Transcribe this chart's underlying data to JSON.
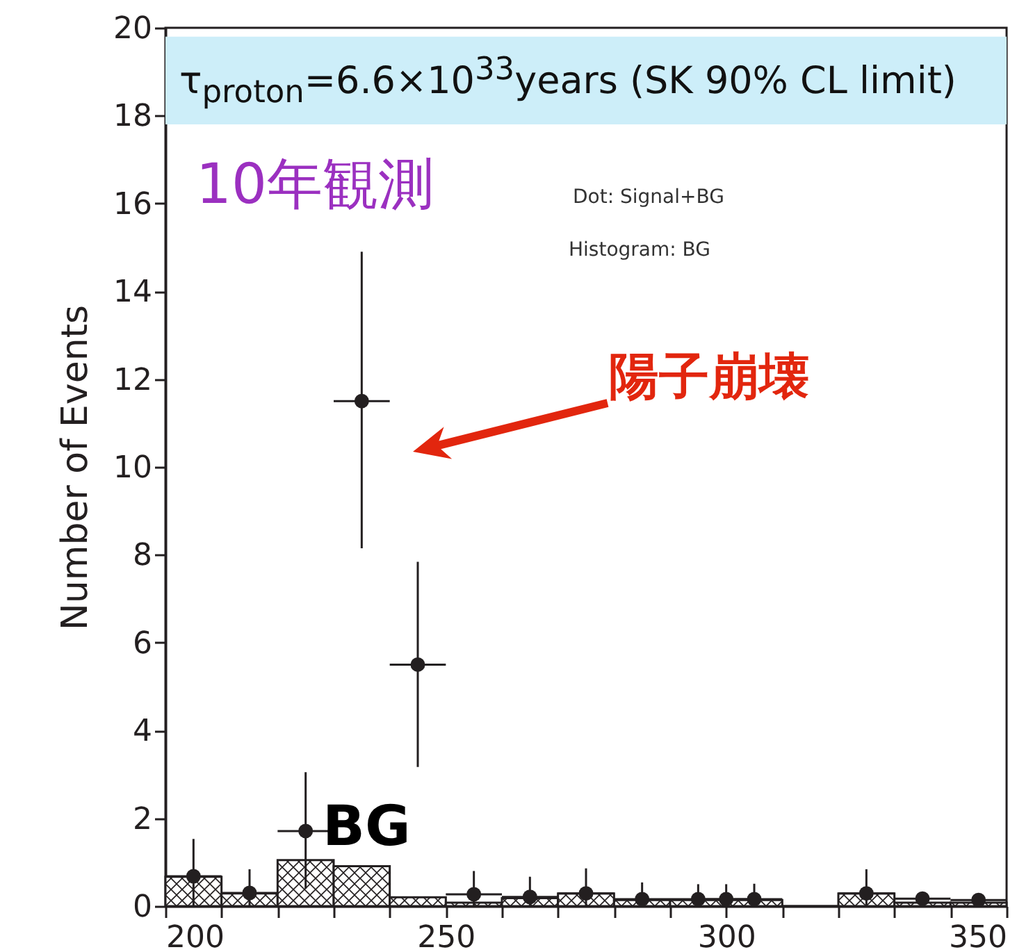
{
  "chart_data": {
    "type": "histogram",
    "ylabel": "Number of Events",
    "xlim": [
      200,
      350
    ],
    "xticks": [
      200,
      {
        "value": 210,
        "label": null
      },
      {
        "value": 220,
        "label": null
      },
      {
        "value": 230,
        "label": null
      },
      {
        "value": 240,
        "label": null
      },
      250,
      {
        "value": 260,
        "label": null
      },
      {
        "value": 270,
        "label": null
      },
      {
        "value": 280,
        "label": null
      },
      {
        "value": 290,
        "label": null
      },
      300,
      {
        "value": 310,
        "label": null
      },
      {
        "value": 320,
        "label": null
      },
      {
        "value": 330,
        "label": null
      },
      {
        "value": 340,
        "label": null
      },
      350
    ],
    "ylim": [
      0,
      20
    ],
    "yticks": [
      0,
      2,
      4,
      6,
      8,
      10,
      12,
      14,
      16,
      18,
      20
    ],
    "grid": false,
    "series": [
      {
        "color": "#231f20",
        "bins": [
          200,
          210,
          220,
          230,
          240,
          250,
          260,
          270,
          280,
          290,
          300,
          310,
          320,
          330,
          340,
          350
        ],
        "values": [
          0.67,
          0.29,
          1.05,
          0.91,
          0.2,
          0.08,
          0.18,
          0.29,
          0.14,
          0.14,
          0.14,
          0,
          0.29,
          0.08,
          0.08
        ]
      },
      {
        "type": "scatter",
        "color": "#231f20",
        "marker": "circle",
        "x": [
          205,
          215,
          225,
          235,
          245,
          255,
          265,
          275,
          285,
          295,
          300,
          305,
          325,
          335,
          345
        ],
        "values": [
          0.68,
          0.3,
          1.71,
          11.5,
          5.5,
          0.27,
          0.21,
          0.29,
          0.16,
          0.16,
          0.16,
          0.16,
          0.29,
          0.17,
          0.14
        ],
        "errors": [
          [
            0,
            1.53
          ],
          [
            0,
            0.84
          ],
          [
            0.4,
            3.05
          ],
          [
            8.15,
            14.9
          ],
          [
            3.17,
            7.84
          ],
          [
            0,
            0.8
          ],
          [
            0,
            0.67
          ],
          [
            0,
            0.86
          ],
          [
            0,
            0.54
          ],
          [
            0,
            0.5
          ],
          [
            0,
            0.5
          ],
          [
            0,
            0.51
          ],
          [
            0,
            0.84
          ],
          [
            0,
            0.3
          ],
          [
            0,
            0.3
          ]
        ],
        "xerrors": [
          5,
          5,
          5,
          5,
          5,
          5,
          5,
          5,
          5,
          5,
          5,
          5,
          5,
          5,
          5
        ]
      }
    ],
    "bands": [
      {
        "axis": "y",
        "from": 17.8,
        "to": 19.8,
        "color": "#cdeef9",
        "label": "τ$_{proton}$=6.6×10$^{33}$years (SK 90% CL limit)"
      }
    ],
    "annotations": [
      "10年観測",
      "Dot: Signal+BG",
      "Histogram: BG",
      "陽子崩壊",
      "BG"
    ]
  }
}
